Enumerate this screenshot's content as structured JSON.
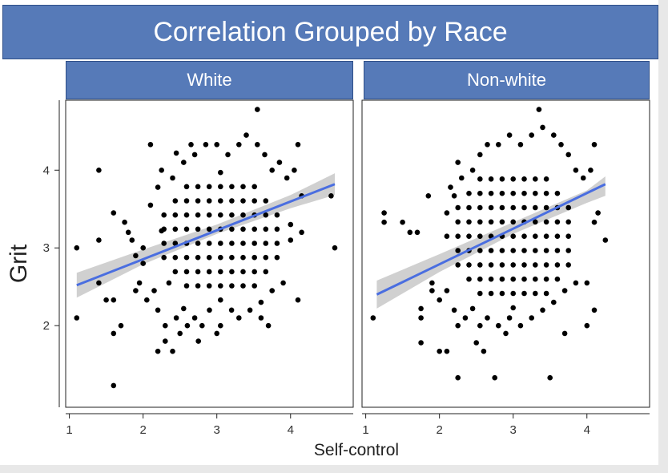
{
  "chart_data": {
    "type": "scatter",
    "title": "Correlation Grouped by Race",
    "xlabel": "Self-control",
    "ylabel": "Grit",
    "xlim": [
      0.95,
      4.85
    ],
    "ylim": [
      0.95,
      4.9
    ],
    "xticks": [
      1,
      2,
      3,
      4
    ],
    "yticks": [
      2,
      3,
      4
    ],
    "grid": false,
    "colors": {
      "points": "#000000",
      "fit_line": "#4a6ee0",
      "confidence_band": "#c8c8c8",
      "strip": "#567ab8"
    },
    "panels": [
      {
        "name": "White",
        "fit": {
          "x": [
            1.1,
            4.6
          ],
          "y": [
            2.52,
            3.82
          ]
        },
        "band": {
          "x": [
            1.1,
            2.0,
            3.0,
            4.0,
            4.6
          ],
          "lower": [
            2.36,
            2.79,
            3.18,
            3.51,
            3.68
          ],
          "upper": [
            2.68,
            2.98,
            3.3,
            3.68,
            3.96
          ]
        },
        "points": [
          [
            1.1,
            3.0
          ],
          [
            1.1,
            2.1
          ],
          [
            1.4,
            4.0
          ],
          [
            1.4,
            3.1
          ],
          [
            1.4,
            2.55
          ],
          [
            1.5,
            2.33
          ],
          [
            1.6,
            3.45
          ],
          [
            1.6,
            2.33
          ],
          [
            1.6,
            1.9
          ],
          [
            1.6,
            1.23
          ],
          [
            1.7,
            2.0
          ],
          [
            1.75,
            3.33
          ],
          [
            1.8,
            3.2
          ],
          [
            1.85,
            3.1
          ],
          [
            1.9,
            2.9
          ],
          [
            1.9,
            2.45
          ],
          [
            2.0,
            3.0
          ],
          [
            2.0,
            2.8
          ],
          [
            2.1,
            4.33
          ],
          [
            2.2,
            1.67
          ],
          [
            2.25,
            3.22
          ],
          [
            2.3,
            1.8
          ],
          [
            2.4,
            1.67
          ],
          [
            2.45,
            4.22
          ],
          [
            2.5,
            1.9
          ],
          [
            2.65,
            4.33
          ],
          [
            2.75,
            1.8
          ],
          [
            2.8,
            2.0
          ],
          [
            3.0,
            1.9
          ],
          [
            3.2,
            2.2
          ],
          [
            3.55,
            4.78
          ],
          [
            3.6,
            2.1
          ],
          [
            3.7,
            2.0
          ],
          [
            4.0,
            3.1
          ],
          [
            4.1,
            2.33
          ],
          [
            4.1,
            4.33
          ],
          [
            4.55,
            3.67
          ],
          [
            4.6,
            3.0
          ],
          [
            1.95,
            2.55
          ],
          [
            2.05,
            2.33
          ],
          [
            2.15,
            2.45
          ],
          [
            2.2,
            2.2
          ],
          [
            2.3,
            2.0
          ],
          [
            2.35,
            2.55
          ],
          [
            2.45,
            2.1
          ],
          [
            2.55,
            2.22
          ],
          [
            2.6,
            2.0
          ],
          [
            2.7,
            2.1
          ],
          [
            2.9,
            2.2
          ],
          [
            3.05,
            2.0
          ],
          [
            3.3,
            2.1
          ],
          [
            3.45,
            2.2
          ],
          [
            3.6,
            2.3
          ],
          [
            3.75,
            2.45
          ],
          [
            3.9,
            2.55
          ],
          [
            2.1,
            3.55
          ],
          [
            2.2,
            3.78
          ],
          [
            2.25,
            4.0
          ],
          [
            2.4,
            3.9
          ],
          [
            2.55,
            4.1
          ],
          [
            2.7,
            4.2
          ],
          [
            2.85,
            4.33
          ],
          [
            3.0,
            4.33
          ],
          [
            3.15,
            4.2
          ],
          [
            3.3,
            4.33
          ],
          [
            3.4,
            4.45
          ],
          [
            3.55,
            4.33
          ],
          [
            3.65,
            4.2
          ],
          [
            3.75,
            4.0
          ],
          [
            3.85,
            4.1
          ],
          [
            3.95,
            3.9
          ],
          [
            4.05,
            4.0
          ],
          [
            4.15,
            3.67
          ],
          [
            4.0,
            3.3
          ],
          [
            4.15,
            3.2
          ]
        ],
        "cloud": {
          "cx": 3.05,
          "cy": 3.15,
          "rx": 0.92,
          "ry": 0.82,
          "rows": 10,
          "cols": 13
        }
      },
      {
        "name": "Non-white",
        "fit": {
          "x": [
            1.15,
            4.25
          ],
          "y": [
            2.4,
            3.82
          ]
        },
        "band": {
          "x": [
            1.15,
            2.0,
            3.0,
            4.0,
            4.25
          ],
          "lower": [
            2.22,
            2.69,
            3.18,
            3.58,
            3.67
          ],
          "upper": [
            2.58,
            2.92,
            3.33,
            3.74,
            3.92
          ]
        },
        "points": [
          [
            1.1,
            2.1
          ],
          [
            1.25,
            3.45
          ],
          [
            1.25,
            3.33
          ],
          [
            1.5,
            3.33
          ],
          [
            1.6,
            3.2
          ],
          [
            1.7,
            3.2
          ],
          [
            1.75,
            2.1
          ],
          [
            1.75,
            2.22
          ],
          [
            1.75,
            1.78
          ],
          [
            1.85,
            3.67
          ],
          [
            1.9,
            2.45
          ],
          [
            2.0,
            1.67
          ],
          [
            2.1,
            1.67
          ],
          [
            2.15,
            3.78
          ],
          [
            2.25,
            1.33
          ],
          [
            2.25,
            4.1
          ],
          [
            2.5,
            1.78
          ],
          [
            2.6,
            1.67
          ],
          [
            2.75,
            1.33
          ],
          [
            2.9,
            1.9
          ],
          [
            3.35,
            4.78
          ],
          [
            3.5,
            1.33
          ],
          [
            3.7,
            1.9
          ],
          [
            4.0,
            2.0
          ],
          [
            4.0,
            2.55
          ],
          [
            4.1,
            2.2
          ],
          [
            4.1,
            3.33
          ],
          [
            4.1,
            4.33
          ],
          [
            4.25,
            3.1
          ],
          [
            4.15,
            3.45
          ],
          [
            1.9,
            2.55
          ],
          [
            2.0,
            2.33
          ],
          [
            2.1,
            2.45
          ],
          [
            2.2,
            2.2
          ],
          [
            2.25,
            2.0
          ],
          [
            2.35,
            2.1
          ],
          [
            2.45,
            2.22
          ],
          [
            2.55,
            2.0
          ],
          [
            2.65,
            2.1
          ],
          [
            2.8,
            2.0
          ],
          [
            2.95,
            2.1
          ],
          [
            3.1,
            2.0
          ],
          [
            3.25,
            2.1
          ],
          [
            3.4,
            2.2
          ],
          [
            3.55,
            2.3
          ],
          [
            3.7,
            2.45
          ],
          [
            3.85,
            2.55
          ],
          [
            2.1,
            3.45
          ],
          [
            2.2,
            3.67
          ],
          [
            2.3,
            3.9
          ],
          [
            2.45,
            4.0
          ],
          [
            2.55,
            4.2
          ],
          [
            2.65,
            4.33
          ],
          [
            2.8,
            4.33
          ],
          [
            2.95,
            4.45
          ],
          [
            3.1,
            4.33
          ],
          [
            3.25,
            4.45
          ],
          [
            3.4,
            4.55
          ],
          [
            3.55,
            4.45
          ],
          [
            3.65,
            4.33
          ],
          [
            3.75,
            4.2
          ],
          [
            3.85,
            4.0
          ],
          [
            3.95,
            3.9
          ],
          [
            4.05,
            4.0
          ]
        ],
        "cloud": {
          "cx": 3.0,
          "cy": 3.15,
          "rx": 0.9,
          "ry": 0.92,
          "rows": 11,
          "cols": 13
        }
      }
    ]
  }
}
